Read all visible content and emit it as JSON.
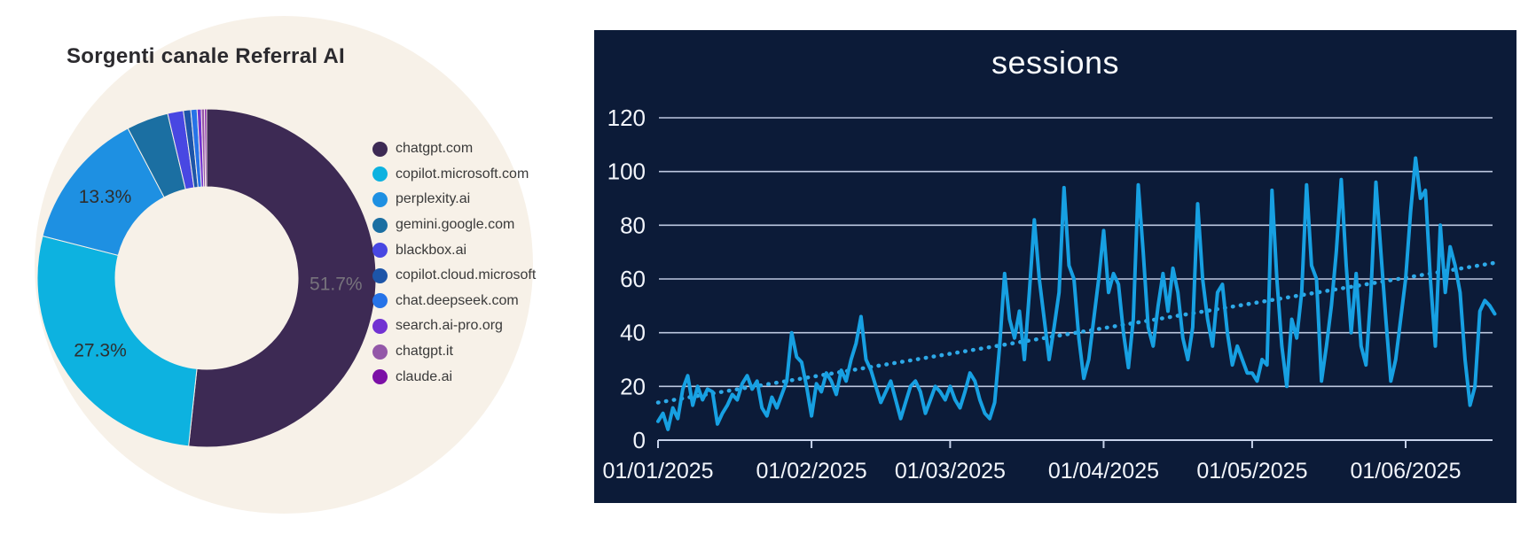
{
  "page": {
    "background": "#ffffff"
  },
  "chart_data": [
    {
      "type": "pie",
      "subtype": "donut",
      "title": "Sorgenti canale Referral AI",
      "labels": [
        "chatgpt.com",
        "copilot.microsoft.com",
        "perplexity.ai",
        "gemini.google.com",
        "blackbox.ai",
        "copilot.cloud.microsoft",
        "chat.deepseek.com",
        "search.ai-pro.org",
        "chatgpt.it",
        "claude.ai"
      ],
      "values": [
        51.7,
        27.3,
        13.3,
        4.0,
        1.5,
        0.7,
        0.6,
        0.4,
        0.3,
        0.2
      ],
      "unit": "percent",
      "colors": [
        "#3d2a54",
        "#0db2e0",
        "#1e90e2",
        "#1b6fa2",
        "#4847e2",
        "#1d55a8",
        "#2673e8",
        "#7232d2",
        "#9357a8",
        "#7c10a6"
      ],
      "slice_labels": [
        "51.7%",
        "27.3%",
        "13.3%",
        "",
        "",
        "",
        "",
        "",
        "",
        ""
      ],
      "slice_label_colors": [
        "#77737c",
        "#2e2e2e",
        "#2e2e2e"
      ],
      "legend_position": "right",
      "backdrop_color": "#f7f1e8",
      "title_color": "#2b2a2e",
      "legend_text_color": "#3a3a3a"
    },
    {
      "type": "line",
      "title": "sessions",
      "x_tick_labels": [
        "01/01/2025",
        "01/02/2025",
        "01/03/2025",
        "01/04/2025",
        "01/05/2025",
        "01/06/2025"
      ],
      "x_tick_day_index": [
        0,
        31,
        59,
        90,
        120,
        151
      ],
      "y_ticks": [
        0,
        20,
        40,
        60,
        80,
        100,
        120
      ],
      "ylim": [
        0,
        120
      ],
      "grid": "horizontal",
      "background_color": "#0c1b38",
      "grid_color": "#c7d2ea",
      "axis_text_color": "#f2f5fb",
      "title_color": "#fafcff",
      "series": [
        {
          "name": "sessions",
          "color": "#17a0e2",
          "values": [
            7,
            10,
            4,
            12,
            8,
            19,
            24,
            13,
            20,
            15,
            19,
            18,
            6,
            10,
            13,
            17,
            15,
            21,
            24,
            19,
            22,
            12,
            9,
            16,
            12,
            17,
            22,
            40,
            31,
            29,
            20,
            9,
            21,
            18,
            25,
            22,
            17,
            26,
            22,
            30,
            36,
            46,
            30,
            26,
            20,
            14,
            18,
            22,
            15,
            8,
            14,
            20,
            22,
            18,
            10,
            15,
            20,
            18,
            15,
            20,
            15,
            12,
            18,
            25,
            22,
            15,
            10,
            8,
            14,
            35,
            62,
            45,
            38,
            48,
            30,
            55,
            82,
            60,
            45,
            30,
            42,
            55,
            94,
            65,
            60,
            38,
            23,
            30,
            45,
            60,
            78,
            55,
            62,
            58,
            40,
            27,
            45,
            95,
            70,
            42,
            35,
            50,
            62,
            48,
            64,
            55,
            38,
            30,
            42,
            88,
            60,
            45,
            35,
            55,
            58,
            40,
            28,
            35,
            30,
            25,
            25,
            22,
            30,
            28,
            93,
            60,
            35,
            20,
            45,
            38,
            55,
            95,
            65,
            60,
            22,
            35,
            50,
            70,
            97,
            65,
            40,
            62,
            35,
            28,
            55,
            96,
            70,
            45,
            22,
            30,
            45,
            60,
            85,
            105,
            90,
            93,
            60,
            35,
            80,
            55,
            72,
            65,
            55,
            30,
            13,
            20,
            48,
            52,
            50,
            47
          ]
        }
      ],
      "trendline": {
        "name": "linear trend",
        "style": "dotted",
        "color": "#2da9e8",
        "start_value": 14,
        "end_value": 66
      }
    }
  ]
}
